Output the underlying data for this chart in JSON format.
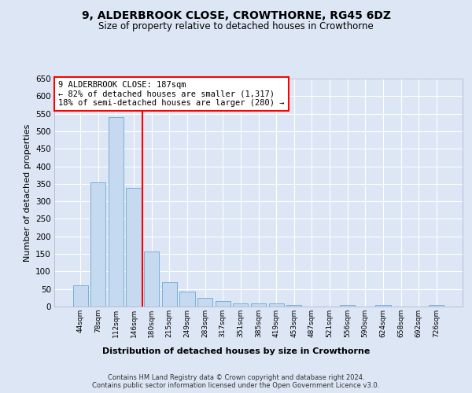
{
  "title": "9, ALDERBROOK CLOSE, CROWTHORNE, RG45 6DZ",
  "subtitle": "Size of property relative to detached houses in Crowthorne",
  "xlabel": "Distribution of detached houses by size in Crowthorne",
  "ylabel": "Number of detached properties",
  "categories": [
    "44sqm",
    "78sqm",
    "112sqm",
    "146sqm",
    "180sqm",
    "215sqm",
    "249sqm",
    "283sqm",
    "317sqm",
    "351sqm",
    "385sqm",
    "419sqm",
    "453sqm",
    "487sqm",
    "521sqm",
    "556sqm",
    "590sqm",
    "624sqm",
    "658sqm",
    "692sqm",
    "726sqm"
  ],
  "values": [
    60,
    355,
    540,
    338,
    157,
    70,
    42,
    25,
    15,
    10,
    9,
    9,
    4,
    0,
    0,
    5,
    0,
    5,
    0,
    0,
    5
  ],
  "bar_color": "#c5d9f0",
  "bar_edge_color": "#7bafd4",
  "redline_bin_index": 4,
  "annotation_title": "9 ALDERBROOK CLOSE: 187sqm",
  "annotation_line1": "← 82% of detached houses are smaller (1,317)",
  "annotation_line2": "18% of semi-detached houses are larger (280) →",
  "ylim_max": 650,
  "yticks": [
    0,
    50,
    100,
    150,
    200,
    250,
    300,
    350,
    400,
    450,
    500,
    550,
    600,
    650
  ],
  "bg_color": "#dce6f5",
  "grid_color": "#ffffff",
  "footer_line1": "Contains HM Land Registry data © Crown copyright and database right 2024.",
  "footer_line2": "Contains public sector information licensed under the Open Government Licence v3.0."
}
